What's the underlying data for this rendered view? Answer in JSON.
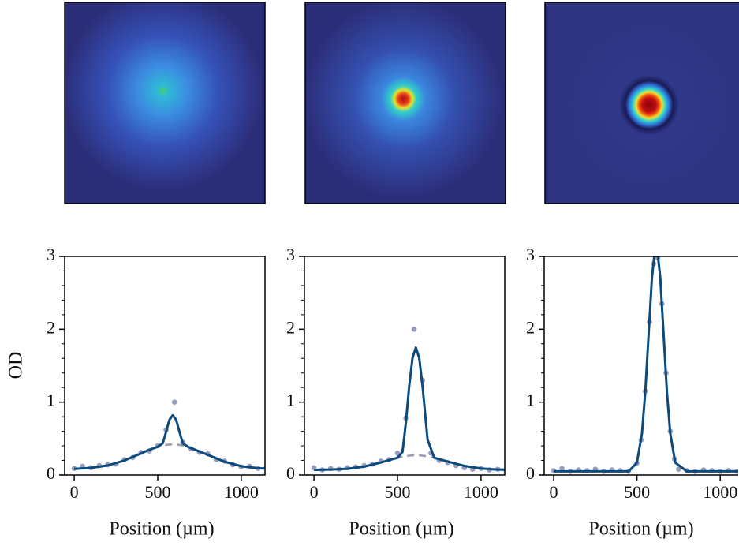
{
  "chart_data": [
    {
      "type": "scatter",
      "ylabel": "OD",
      "xlabel": "Position (µm)",
      "xlim": [
        -57,
        1142
      ],
      "ylim": [
        0,
        3
      ],
      "xticks": [
        0,
        500,
        1000
      ],
      "yticks": [
        0,
        1,
        2,
        3
      ],
      "yminorticks": [
        0.2,
        0.4,
        0.6,
        0.8,
        1.2,
        1.4,
        1.6,
        1.8,
        2.2,
        2.4,
        2.6,
        2.8
      ],
      "series": [
        {
          "type": "scatter",
          "color": "#7f84ad",
          "x": [
            0,
            50,
            100,
            150,
            200,
            250,
            300,
            350,
            400,
            450,
            500,
            550,
            600,
            650,
            700,
            750,
            800,
            850,
            900,
            950,
            1000,
            1050,
            1100,
            1150,
            1200
          ],
          "values": [
            0.09,
            0.12,
            0.1,
            0.13,
            0.14,
            0.15,
            0.21,
            0.24,
            0.31,
            0.33,
            0.4,
            0.62,
            1.0,
            0.45,
            0.36,
            0.31,
            0.29,
            0.21,
            0.19,
            0.14,
            0.11,
            0.12,
            0.09,
            0.1,
            0.08
          ]
        },
        {
          "type": "line",
          "style": "dashed",
          "color": "#9a9ab2",
          "x": [
            0,
            100,
            200,
            300,
            400,
            450,
            500,
            530,
            550,
            570,
            590,
            610,
            630,
            650,
            680,
            720,
            800,
            900,
            1000,
            1100,
            1200
          ],
          "values": [
            0.084,
            0.097,
            0.131,
            0.199,
            0.297,
            0.346,
            0.387,
            0.405,
            0.413,
            0.418,
            0.42,
            0.418,
            0.413,
            0.405,
            0.387,
            0.35,
            0.276,
            0.182,
            0.121,
            0.093,
            0.083
          ]
        },
        {
          "type": "line",
          "style": "solid",
          "color": "#0b4a7c",
          "x": [
            0,
            100,
            200,
            300,
            400,
            450,
            500,
            530,
            550,
            570,
            590,
            610,
            630,
            650,
            680,
            720,
            800,
            900,
            1000,
            1100,
            1200
          ],
          "values": [
            0.084,
            0.097,
            0.131,
            0.199,
            0.297,
            0.346,
            0.387,
            0.435,
            0.593,
            0.758,
            0.82,
            0.758,
            0.593,
            0.435,
            0.387,
            0.35,
            0.276,
            0.182,
            0.121,
            0.093,
            0.083
          ]
        }
      ]
    },
    {
      "type": "scatter",
      "xlabel": "Position (µm)",
      "xlim": [
        -57,
        1142
      ],
      "ylim": [
        0,
        3
      ],
      "xticks": [
        0,
        500,
        1000
      ],
      "yticks": [
        0,
        1,
        2,
        3
      ],
      "yminorticks": [
        0.2,
        0.4,
        0.6,
        0.8,
        1.2,
        1.4,
        1.6,
        1.8,
        2.2,
        2.4,
        2.6,
        2.8
      ],
      "series": [
        {
          "type": "scatter",
          "color": "#7f84ad",
          "x": [
            0,
            50,
            100,
            150,
            200,
            250,
            300,
            350,
            400,
            450,
            500,
            550,
            600,
            650,
            700,
            750,
            800,
            850,
            900,
            950,
            1000,
            1050,
            1100,
            1150,
            1200
          ],
          "values": [
            0.1,
            0.07,
            0.09,
            0.08,
            0.1,
            0.11,
            0.13,
            0.15,
            0.19,
            0.21,
            0.3,
            0.78,
            2.0,
            1.3,
            0.3,
            0.2,
            0.17,
            0.13,
            0.1,
            0.08,
            0.09,
            0.07,
            0.08,
            0.06,
            0.07
          ]
        },
        {
          "type": "line",
          "style": "dashed",
          "color": "#9a9ab2",
          "x": [
            0,
            100,
            200,
            300,
            400,
            450,
            500,
            530,
            550,
            570,
            590,
            610,
            630,
            650,
            680,
            720,
            800,
            900,
            1000,
            1100,
            1200
          ],
          "values": [
            0.071,
            0.074,
            0.085,
            0.115,
            0.171,
            0.205,
            0.236,
            0.251,
            0.259,
            0.265,
            0.269,
            0.27,
            0.269,
            0.265,
            0.255,
            0.236,
            0.185,
            0.125,
            0.089,
            0.075,
            0.071
          ]
        },
        {
          "type": "line",
          "style": "solid",
          "color": "#0b4a7c",
          "x": [
            0,
            100,
            200,
            300,
            400,
            450,
            500,
            530,
            550,
            570,
            590,
            610,
            630,
            650,
            680,
            720,
            800,
            900,
            1000,
            1100,
            1200
          ],
          "values": [
            0.071,
            0.074,
            0.085,
            0.115,
            0.171,
            0.205,
            0.236,
            0.316,
            0.716,
            1.218,
            1.607,
            1.75,
            1.607,
            1.218,
            0.486,
            0.236,
            0.185,
            0.125,
            0.089,
            0.075,
            0.071
          ]
        }
      ]
    },
    {
      "type": "scatter",
      "xlabel": "Position (µm)",
      "xlim": [
        -57,
        1108
      ],
      "ylim": [
        0,
        3
      ],
      "xticks": [
        0,
        500,
        1000
      ],
      "yticks": [
        0,
        1,
        2,
        3
      ],
      "yminorticks": [
        0.2,
        0.4,
        0.6,
        0.8,
        1.2,
        1.4,
        1.6,
        1.8,
        2.2,
        2.4,
        2.6,
        2.8
      ],
      "series": [
        {
          "type": "scatter",
          "color": "#7f84ad",
          "x": [
            0,
            50,
            100,
            150,
            200,
            250,
            300,
            350,
            400,
            450,
            500,
            525,
            550,
            575,
            600,
            625,
            650,
            675,
            700,
            725,
            750,
            800,
            850,
            900,
            950,
            1000,
            1050,
            1100,
            1150,
            1200
          ],
          "values": [
            0.06,
            0.09,
            0.05,
            0.07,
            0.06,
            0.08,
            0.05,
            0.07,
            0.06,
            0.05,
            0.16,
            0.48,
            1.15,
            2.1,
            2.9,
            2.98,
            2.35,
            1.4,
            0.6,
            0.22,
            0.08,
            0.06,
            0.05,
            0.07,
            0.06,
            0.05,
            0.06,
            0.05,
            0.07,
            0.06
          ]
        },
        {
          "type": "line",
          "style": "solid",
          "color": "#0b4a7c",
          "x": [
            0,
            100,
            200,
            300,
            400,
            450,
            500,
            530,
            550,
            570,
            590,
            610,
            615,
            620,
            640,
            660,
            680,
            700,
            730,
            800,
            900,
            1000,
            1100,
            1200
          ],
          "values": [
            0.05,
            0.05,
            0.05,
            0.05,
            0.05,
            0.05,
            0.17,
            0.57,
            1.14,
            1.93,
            2.71,
            3.13,
            3.15,
            3.13,
            2.71,
            1.93,
            1.14,
            0.57,
            0.17,
            0.05,
            0.05,
            0.05,
            0.05,
            0.05
          ]
        }
      ]
    }
  ]
}
